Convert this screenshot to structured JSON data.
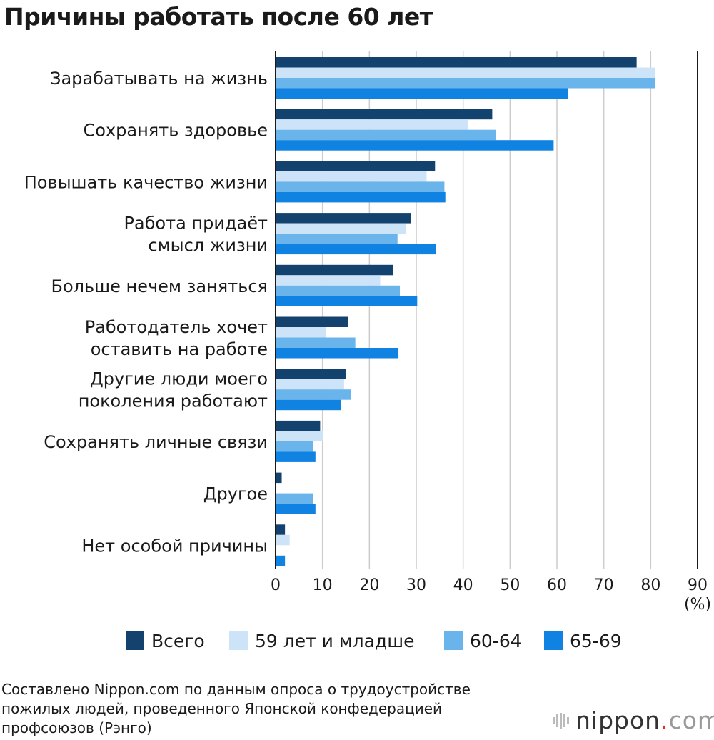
{
  "title": "Причины работать после 60 лет",
  "colors": {
    "total": "#14426e",
    "under59": "#cde3f8",
    "age60_64": "#6ab4ec",
    "age65_69": "#0f82e2",
    "grid": "#cccccc",
    "axis": "#1a1a1a"
  },
  "chart_data": {
    "type": "bar",
    "orientation": "horizontal",
    "title": "Причины работать после 60 лет",
    "xlabel": "",
    "unit_label": "(%)",
    "xlim": [
      0,
      90
    ],
    "xticks": [
      0,
      10,
      20,
      30,
      40,
      50,
      60,
      70,
      80,
      90
    ],
    "grid": true,
    "legend_position": "bottom",
    "categories": [
      [
        "Зарабатывать на жизнь"
      ],
      [
        "Сохранять здоровье"
      ],
      [
        "Повышать качество жизни"
      ],
      [
        "Работа придаёт",
        "смысл жизни"
      ],
      [
        "Больше нечем заняться"
      ],
      [
        "Работодатель хочет",
        "оставить на работе"
      ],
      [
        "Другие люди моего",
        "поколения работают"
      ],
      [
        "Сохранять личные связи"
      ],
      [
        "Другое"
      ],
      [
        "Нет особой причины"
      ]
    ],
    "series": [
      {
        "name": "Всего",
        "color_key": "total",
        "values": [
          77,
          46.2,
          34,
          28.8,
          25,
          15.5,
          15,
          9.5,
          1.3,
          2
        ]
      },
      {
        "name": "59 лет и младше",
        "color_key": "under59",
        "values": [
          81,
          41,
          32.2,
          27.8,
          22.3,
          10.8,
          14.6,
          10.2,
          0,
          3
        ]
      },
      {
        "name": "60-64",
        "color_key": "age60_64",
        "values": [
          81,
          47,
          36,
          26,
          26.5,
          17,
          16,
          8,
          8,
          0
        ]
      },
      {
        "name": "65-69",
        "color_key": "age65_69",
        "values": [
          62.3,
          59.3,
          36.2,
          34.2,
          30.2,
          26.2,
          14,
          8.5,
          8.5,
          2
        ]
      }
    ]
  },
  "source_lines": [
    "Составлено Nippon.com по данным опроса о трудоустройстве",
    "пожилых людей, проведенного Японской конфедерацией",
    "профсоюзов (Рэнго)"
  ],
  "brand": {
    "name": "nippon",
    "dot": ".",
    "suffix": "com"
  }
}
